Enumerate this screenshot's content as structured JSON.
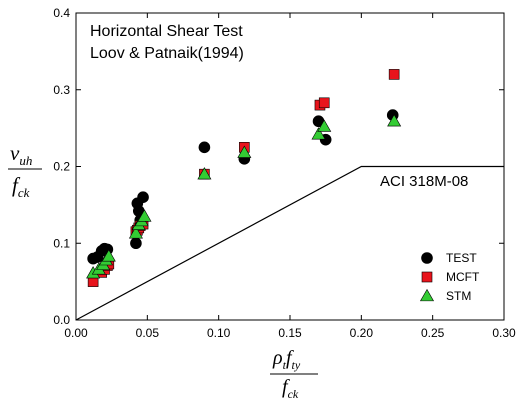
{
  "chart_data": {
    "type": "scatter",
    "annotation_lines": [
      "Horizontal Shear Test",
      "Loov & Patnaik(1994)"
    ],
    "xlim": [
      0,
      0.3
    ],
    "ylim": [
      0,
      0.4
    ],
    "x_ticks": [
      "0.00",
      "0.05",
      "0.10",
      "0.15",
      "0.20",
      "0.25",
      "0.30"
    ],
    "y_ticks": [
      "0.0",
      "0.1",
      "0.2",
      "0.3",
      "0.4"
    ],
    "y_label": {
      "main": "v",
      "sub": "uh",
      "den": "f",
      "den_sub": "ck"
    },
    "x_label": {
      "rho": "ρ",
      "rho_sub": "t",
      "f": "f",
      "f_sub": "ty",
      "den": "f",
      "den_sub": "ck"
    },
    "code_line": {
      "name": "ACI 318M-08",
      "points": [
        [
          0,
          0
        ],
        [
          0.2,
          0.2
        ],
        [
          0.3,
          0.2
        ]
      ]
    },
    "series": [
      {
        "name": "TEST",
        "marker": "circle",
        "color": "#000000",
        "points": [
          [
            0.012,
            0.08
          ],
          [
            0.015,
            0.082
          ],
          [
            0.018,
            0.09
          ],
          [
            0.02,
            0.093
          ],
          [
            0.022,
            0.092
          ],
          [
            0.042,
            0.1
          ],
          [
            0.043,
            0.152
          ],
          [
            0.044,
            0.142
          ],
          [
            0.045,
            0.13
          ],
          [
            0.047,
            0.16
          ],
          [
            0.09,
            0.225
          ],
          [
            0.118,
            0.21
          ],
          [
            0.17,
            0.259
          ],
          [
            0.175,
            0.235
          ],
          [
            0.222,
            0.267
          ]
        ]
      },
      {
        "name": "MCFT",
        "marker": "square",
        "color": "#e8141c",
        "points": [
          [
            0.012,
            0.05
          ],
          [
            0.018,
            0.062
          ],
          [
            0.02,
            0.066
          ],
          [
            0.022,
            0.071
          ],
          [
            0.023,
            0.073
          ],
          [
            0.042,
            0.115
          ],
          [
            0.043,
            0.117
          ],
          [
            0.044,
            0.12
          ],
          [
            0.045,
            0.123
          ],
          [
            0.047,
            0.125
          ],
          [
            0.09,
            0.19
          ],
          [
            0.118,
            0.225
          ],
          [
            0.171,
            0.28
          ],
          [
            0.174,
            0.283
          ],
          [
            0.223,
            0.32
          ]
        ]
      },
      {
        "name": "STM",
        "marker": "triangle",
        "color": "#33cc33",
        "points": [
          [
            0.012,
            0.061
          ],
          [
            0.016,
            0.066
          ],
          [
            0.019,
            0.072
          ],
          [
            0.021,
            0.078
          ],
          [
            0.023,
            0.083
          ],
          [
            0.042,
            0.113
          ],
          [
            0.044,
            0.124
          ],
          [
            0.046,
            0.129
          ],
          [
            0.048,
            0.135
          ],
          [
            0.09,
            0.19
          ],
          [
            0.118,
            0.218
          ],
          [
            0.17,
            0.242
          ],
          [
            0.174,
            0.252
          ],
          [
            0.223,
            0.259
          ]
        ]
      }
    ]
  }
}
